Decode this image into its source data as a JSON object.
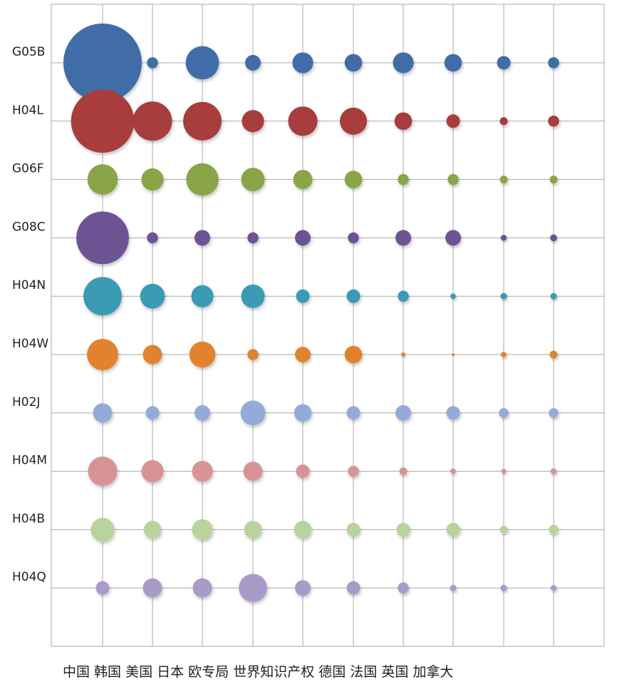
{
  "chart_data": {
    "type": "bubble-matrix",
    "title": "",
    "grid": true,
    "legend": "none",
    "x_categories": [
      "中国",
      "韩国",
      "美国",
      "日本",
      "欧专局",
      "世界知识产权",
      "德国",
      "法国",
      "英国",
      "加拿大"
    ],
    "x_label_text": "中国 韩国 美国 日本 欧专局 世界知识产权 德国 法国 英国 加拿大",
    "series": [
      {
        "name": "G05B",
        "color": "#3F6DA8",
        "values": [
          100,
          2,
          18,
          4,
          7,
          5,
          7,
          5,
          3,
          2
        ]
      },
      {
        "name": "H04L",
        "color": "#A83C3C",
        "values": [
          65,
          25,
          24,
          8,
          14,
          12,
          5,
          3,
          1,
          2
        ]
      },
      {
        "name": "G06F",
        "color": "#89A546",
        "values": [
          15,
          8,
          17,
          9,
          6,
          5,
          2,
          2,
          1,
          1
        ]
      },
      {
        "name": "G08C",
        "color": "#6E5394",
        "values": [
          45,
          2,
          4,
          2,
          4,
          2,
          4,
          4,
          0.6,
          0.8
        ]
      },
      {
        "name": "H04N",
        "color": "#3A9AB4",
        "values": [
          24,
          10,
          8,
          9,
          3,
          3,
          2,
          0.5,
          0.7,
          0.7
        ]
      },
      {
        "name": "H04W",
        "color": "#E1832F",
        "values": [
          16,
          6,
          11,
          2,
          4,
          5,
          0.3,
          0.1,
          0.5,
          1
        ]
      },
      {
        "name": "H02J",
        "color": "#94ABD9",
        "values": [
          6,
          3,
          4,
          10,
          5,
          3,
          4,
          3,
          1.5,
          1.5
        ]
      },
      {
        "name": "H04M",
        "color": "#D99395",
        "values": [
          14,
          8,
          7,
          6,
          3,
          2,
          1,
          0.5,
          0.4,
          0.6
        ]
      },
      {
        "name": "H04B",
        "color": "#B8D39B",
        "values": [
          9,
          5,
          7,
          5,
          5,
          3,
          3,
          3,
          1,
          1.5
        ]
      },
      {
        "name": "H04Q",
        "color": "#A99BC8",
        "values": [
          3,
          6,
          6,
          13,
          4,
          3,
          2,
          0.7,
          0.7,
          0.6
        ]
      }
    ]
  }
}
